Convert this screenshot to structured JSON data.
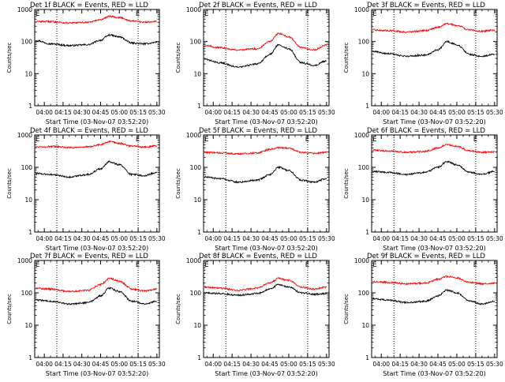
{
  "shared": {
    "y_label": "Counts/sec",
    "x_label": "Start Time (03-Nov-07 03:52:20)",
    "x_ticks": [
      "04:00",
      "04:15",
      "04:30",
      "04:45",
      "05:00",
      "05:15",
      "05:30"
    ],
    "y_ticks": [
      "1",
      "10",
      "100",
      "1000"
    ],
    "series_colors": {
      "events": "#000000",
      "lld": "#ff0000"
    }
  },
  "chart_data": [
    {
      "type": "line",
      "title": "Det 1f BLACK = Events, RED = LLD",
      "xlabel": "Start Time (03-Nov-07 03:52:20)",
      "ylabel": "Counts/sec",
      "yscale": "log",
      "ylim": [
        1,
        1000
      ],
      "xlim": [
        "03:52:20",
        "05:32"
      ],
      "markers": [
        {
          "label": "E",
          "x": "03:53"
        },
        {
          "label": "E",
          "x": "05:13"
        }
      ],
      "vlines": [
        "04:10",
        "05:15"
      ],
      "x": [
        "03:53",
        "04:05",
        "04:20",
        "04:35",
        "04:45",
        "04:52",
        "05:00",
        "05:10",
        "05:20",
        "05:30"
      ],
      "series": [
        {
          "values": [
            110,
            85,
            75,
            80,
            110,
            160,
            140,
            90,
            85,
            95
          ],
          "color": "#000000"
        },
        {
          "values": [
            420,
            420,
            380,
            400,
            480,
            620,
            560,
            440,
            400,
            430
          ],
          "color": "#ff0000"
        }
      ]
    },
    {
      "type": "line",
      "title": "Det 2f BLACK = Events, RED = LLD",
      "xlabel": "Start Time (03-Nov-07 03:52:20)",
      "ylabel": "Counts/sec",
      "yscale": "log",
      "ylim": [
        1,
        1000
      ],
      "xlim": [
        "03:52:20",
        "05:32"
      ],
      "markers": [
        {
          "label": "E",
          "x": "03:53"
        },
        {
          "label": "E",
          "x": "05:13"
        }
      ],
      "vlines": [
        "04:10",
        "05:15"
      ],
      "x": [
        "03:53",
        "04:05",
        "04:20",
        "04:35",
        "04:45",
        "04:52",
        "05:00",
        "05:10",
        "05:20",
        "05:30"
      ],
      "series": [
        {
          "values": [
            28,
            22,
            16,
            20,
            40,
            80,
            60,
            22,
            18,
            25
          ],
          "color": "#000000"
        },
        {
          "values": [
            75,
            65,
            55,
            60,
            100,
            180,
            140,
            65,
            55,
            80
          ],
          "color": "#ff0000"
        }
      ]
    },
    {
      "type": "line",
      "title": "Det 3f BLACK = Events, RED = LLD",
      "xlabel": "Start Time (03-Nov-07 03:52:20)",
      "ylabel": "Counts/sec",
      "yscale": "log",
      "ylim": [
        1,
        1000
      ],
      "xlim": [
        "03:52:20",
        "05:32"
      ],
      "markers": [
        {
          "label": "E",
          "x": "03:53"
        },
        {
          "label": "E",
          "x": "05:13"
        }
      ],
      "vlines": [
        "04:10",
        "05:15"
      ],
      "x": [
        "03:53",
        "04:05",
        "04:20",
        "04:35",
        "04:45",
        "04:52",
        "05:00",
        "05:10",
        "05:20",
        "05:30"
      ],
      "series": [
        {
          "values": [
            50,
            42,
            35,
            38,
            55,
            100,
            80,
            40,
            35,
            40
          ],
          "color": "#000000"
        },
        {
          "values": [
            230,
            220,
            200,
            220,
            280,
            360,
            320,
            230,
            210,
            230
          ],
          "color": "#ff0000"
        }
      ]
    },
    {
      "type": "line",
      "title": "Det 4f BLACK = Events, RED = LLD",
      "xlabel": "Start Time (03-Nov-07 03:52:20)",
      "ylabel": "Counts/sec",
      "yscale": "log",
      "ylim": [
        1,
        1000
      ],
      "xlim": [
        "03:52:20",
        "05:32"
      ],
      "markers": [
        {
          "label": "E",
          "x": "03:53"
        },
        {
          "label": "E",
          "x": "05:13"
        }
      ],
      "vlines": [
        "04:10",
        "05:15"
      ],
      "x": [
        "03:53",
        "04:05",
        "04:20",
        "04:35",
        "04:45",
        "04:52",
        "05:00",
        "05:10",
        "05:20",
        "05:30"
      ],
      "series": [
        {
          "values": [
            65,
            60,
            50,
            60,
            90,
            150,
            120,
            60,
            55,
            70
          ],
          "color": "#000000"
        },
        {
          "values": [
            430,
            440,
            410,
            430,
            500,
            620,
            550,
            450,
            420,
            460
          ],
          "color": "#ff0000"
        }
      ]
    },
    {
      "type": "line",
      "title": "Det 5f BLACK = Events, RED = LLD",
      "xlabel": "Start Time (03-Nov-07 03:52:20)",
      "ylabel": "Counts/sec",
      "yscale": "log",
      "ylim": [
        1,
        1000
      ],
      "xlim": [
        "03:52:20",
        "05:32"
      ],
      "markers": [
        {
          "label": "E",
          "x": "03:53"
        },
        {
          "label": "E",
          "x": "05:13"
        }
      ],
      "vlines": [
        "04:10",
        "05:15"
      ],
      "x": [
        "03:53",
        "04:05",
        "04:20",
        "04:35",
        "04:45",
        "04:52",
        "05:00",
        "05:10",
        "05:20",
        "05:30"
      ],
      "series": [
        {
          "values": [
            50,
            45,
            35,
            40,
            60,
            100,
            80,
            40,
            35,
            45
          ],
          "color": "#000000"
        },
        {
          "values": [
            290,
            280,
            260,
            280,
            360,
            400,
            390,
            290,
            270,
            290
          ],
          "color": "#ff0000"
        }
      ]
    },
    {
      "type": "line",
      "title": "Det 6f BLACK = Events, RED = LLD",
      "xlabel": "Start Time (03-Nov-07 03:52:20)",
      "ylabel": "Counts/sec",
      "yscale": "log",
      "ylim": [
        1,
        1000
      ],
      "xlim": [
        "03:52:20",
        "05:32"
      ],
      "markers": [
        {
          "label": "E",
          "x": "03:53"
        },
        {
          "label": "E",
          "x": "05:13"
        }
      ],
      "vlines": [
        "04:10",
        "05:15"
      ],
      "x": [
        "03:53",
        "04:05",
        "04:20",
        "04:35",
        "04:45",
        "04:52",
        "05:00",
        "05:10",
        "05:20",
        "05:30"
      ],
      "series": [
        {
          "values": [
            75,
            70,
            60,
            70,
            100,
            150,
            120,
            70,
            60,
            75
          ],
          "color": "#000000"
        },
        {
          "values": [
            340,
            320,
            290,
            310,
            400,
            500,
            450,
            320,
            290,
            300
          ],
          "color": "#ff0000"
        }
      ]
    },
    {
      "type": "line",
      "title": "Det 7f BLACK = Events, RED = LLD",
      "xlabel": "Start Time (03-Nov-07 03:52:20)",
      "ylabel": "Counts/sec",
      "yscale": "log",
      "ylim": [
        1,
        1000
      ],
      "xlim": [
        "03:52:20",
        "05:32"
      ],
      "markers": [
        {
          "label": "E",
          "x": "03:53"
        },
        {
          "label": "E",
          "x": "05:13"
        }
      ],
      "vlines": [
        "04:10",
        "05:15"
      ],
      "x": [
        "03:53",
        "04:05",
        "04:20",
        "04:35",
        "04:45",
        "04:52",
        "05:00",
        "05:10",
        "05:20",
        "05:30"
      ],
      "series": [
        {
          "values": [
            60,
            55,
            45,
            50,
            80,
            140,
            110,
            55,
            45,
            55
          ],
          "color": "#000000"
        },
        {
          "values": [
            140,
            130,
            110,
            120,
            180,
            280,
            230,
            130,
            115,
            130
          ],
          "color": "#ff0000"
        }
      ]
    },
    {
      "type": "line",
      "title": "Det 8f BLACK = Events, RED = LLD",
      "xlabel": "Start Time (03-Nov-07 03:52:20)",
      "ylabel": "Counts/sec",
      "yscale": "log",
      "ylim": [
        1,
        1000
      ],
      "xlim": [
        "03:52:20",
        "05:32"
      ],
      "markers": [
        {
          "label": "E",
          "x": "03:53"
        },
        {
          "label": "E",
          "x": "05:13"
        }
      ],
      "vlines": [
        "04:10",
        "05:15"
      ],
      "x": [
        "03:53",
        "04:05",
        "04:20",
        "04:35",
        "04:45",
        "04:52",
        "05:00",
        "05:10",
        "05:20",
        "05:30"
      ],
      "series": [
        {
          "values": [
            100,
            95,
            85,
            95,
            130,
            180,
            150,
            100,
            90,
            95
          ],
          "color": "#000000"
        },
        {
          "values": [
            150,
            140,
            120,
            140,
            200,
            280,
            240,
            150,
            130,
            150
          ],
          "color": "#ff0000"
        }
      ]
    },
    {
      "type": "line",
      "title": "Det 9f BLACK = Events, RED = LLD",
      "xlabel": "Start Time (03-Nov-07 03:52:20)",
      "ylabel": "Counts/sec",
      "yscale": "log",
      "ylim": [
        1,
        1000
      ],
      "xlim": [
        "03:52:20",
        "05:32"
      ],
      "markers": [
        {
          "label": "E",
          "x": "03:53"
        },
        {
          "label": "E",
          "x": "05:13"
        }
      ],
      "vlines": [
        "04:10",
        "05:15"
      ],
      "x": [
        "03:53",
        "04:05",
        "04:20",
        "04:35",
        "04:45",
        "04:52",
        "05:00",
        "05:10",
        "05:20",
        "05:30"
      ],
      "series": [
        {
          "values": [
            65,
            60,
            50,
            55,
            80,
            120,
            100,
            55,
            45,
            55
          ],
          "color": "#000000"
        },
        {
          "values": [
            220,
            210,
            190,
            200,
            260,
            320,
            290,
            210,
            190,
            200
          ],
          "color": "#ff0000"
        }
      ]
    }
  ]
}
